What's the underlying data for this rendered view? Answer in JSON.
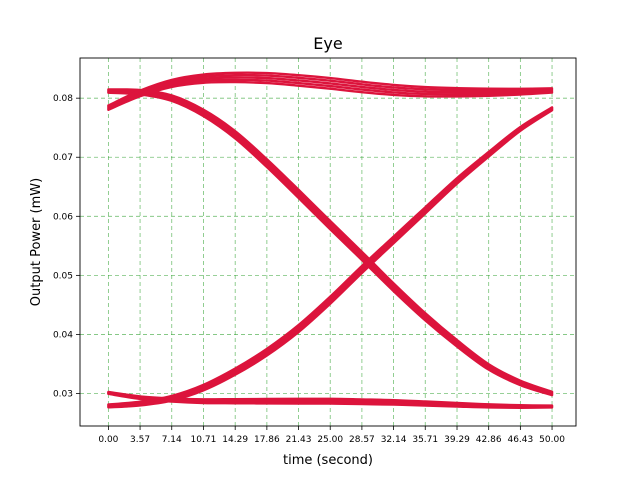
{
  "chart_data": {
    "type": "line",
    "title": "Eye",
    "xlabel": "time (second)",
    "ylabel": "Output Power (mW)",
    "xlim": [
      -3.2,
      52.7
    ],
    "ylim": [
      0.0245,
      0.0868
    ],
    "x_ticks": [
      "0.00",
      "3.57",
      "7.14",
      "10.71",
      "14.29",
      "17.86",
      "21.43",
      "25.00",
      "28.57",
      "32.14",
      "35.71",
      "39.29",
      "42.86",
      "46.43",
      "50.00"
    ],
    "y_ticks": [
      "0.03",
      "0.04",
      "0.05",
      "0.06",
      "0.07",
      "0.08"
    ],
    "grid": true,
    "color": "#dc143c",
    "bundles": [
      {
        "name": "high-to-low transition",
        "x": [
          0,
          3.57,
          7.14,
          10.71,
          14.29,
          17.86,
          21.43,
          25.0,
          28.57,
          32.14,
          35.71,
          39.29,
          42.86,
          46.43,
          50.0
        ],
        "y": [
          0.0812,
          0.081,
          0.08,
          0.0775,
          0.0738,
          0.069,
          0.0638,
          0.0585,
          0.0533,
          0.048,
          0.043,
          0.0385,
          0.0345,
          0.0318,
          0.03
        ],
        "spread": 0.0007
      },
      {
        "name": "low-to-high transition",
        "x": [
          0,
          3.57,
          7.14,
          10.71,
          14.29,
          17.86,
          21.43,
          25.0,
          28.57,
          32.14,
          35.71,
          39.29,
          42.86,
          46.43,
          50.0
        ],
        "y": [
          0.0279,
          0.0283,
          0.0292,
          0.031,
          0.0337,
          0.037,
          0.041,
          0.0458,
          0.051,
          0.056,
          0.061,
          0.066,
          0.0705,
          0.0748,
          0.0782
        ],
        "spread": 0.0006
      },
      {
        "name": "constant high",
        "x": [
          0,
          3.57,
          7.14,
          10.71,
          14.29,
          17.86,
          21.43,
          25.0,
          28.57,
          32.14,
          35.71,
          39.29,
          42.86,
          46.43,
          50.0
        ],
        "y": [
          0.0784,
          0.0808,
          0.0825,
          0.0833,
          0.0835,
          0.0834,
          0.083,
          0.0825,
          0.0819,
          0.0814,
          0.0811,
          0.081,
          0.081,
          0.0811,
          0.0813
        ],
        "spread": 0.0009
      },
      {
        "name": "constant low",
        "x": [
          0,
          3.57,
          7.14,
          10.71,
          14.29,
          17.86,
          21.43,
          25.0,
          28.57,
          32.14,
          35.71,
          39.29,
          42.86,
          46.43,
          50.0
        ],
        "y": [
          0.0301,
          0.0293,
          0.0289,
          0.0287,
          0.0287,
          0.0287,
          0.0287,
          0.0287,
          0.0286,
          0.0285,
          0.0283,
          0.0281,
          0.0279,
          0.0278,
          0.0278
        ],
        "spread": 0.0004
      }
    ]
  }
}
